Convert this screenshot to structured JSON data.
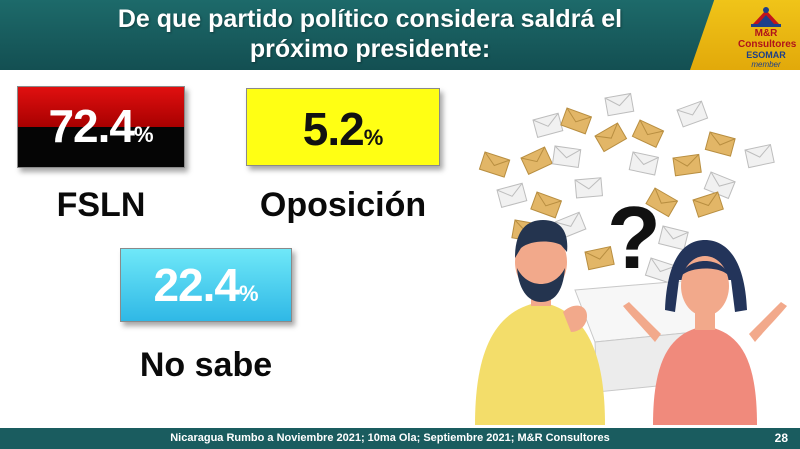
{
  "slide": {
    "title_line1": "De que partido político considera saldrá el",
    "title_line2": "próximo presidente:",
    "logo": {
      "name": "M&R Consultores",
      "sub": "ESOMAR",
      "member": "member"
    },
    "results": [
      {
        "value": "72.4",
        "unit": "%",
        "label": "FSLN",
        "color": "#c00000"
      },
      {
        "value": "5.2",
        "unit": "%",
        "label": "Oposición",
        "color": "#ffff14"
      },
      {
        "value": "22.4",
        "unit": "%",
        "label": "No sabe",
        "color": "#3cc6ec"
      }
    ],
    "illustration": {
      "question_mark": "?",
      "icons": [
        "envelope-icon",
        "man-figure",
        "woman-figure",
        "ballot-box-icon"
      ]
    },
    "footer": {
      "source": "Nicaragua Rumbo a Noviembre 2021; 10ma Ola; Septiembre 2021; M&R Consultores",
      "page_number": "28"
    },
    "colors": {
      "header": "#1d6a6a",
      "accent": "#f0c419",
      "footer": "#1a5c5f"
    }
  }
}
